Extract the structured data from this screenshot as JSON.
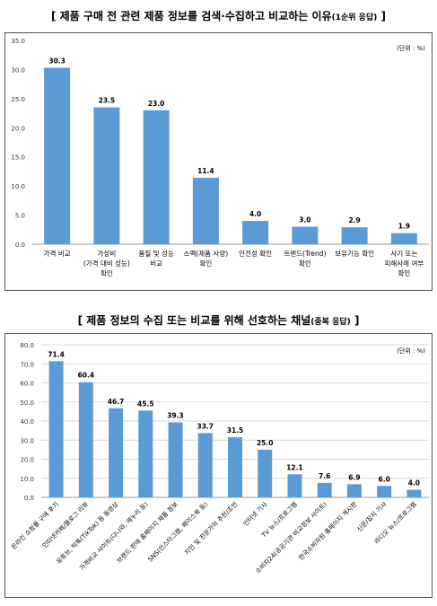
{
  "titles": {
    "chart1_main": "[ 제품 구매 전 관련 제품 정보를 검색·수집하고 비교하는 이유",
    "chart1_paren": "(1순위 응답)",
    "chart1_close": " ]",
    "chart2_main": "[ 제품 정보의 수집 또는 비교를 위해 선호하는 채널",
    "chart2_paren": "(중복 응답)",
    "chart2_close": " ]"
  },
  "colors": {
    "bar": "#5b9bd5",
    "grid": "#d9d9d9",
    "axis": "#999999"
  },
  "chart_data": [
    {
      "type": "bar",
      "title": "[ 제품 구매 전 관련 제품 정보를 검색·수집하고 비교하는 이유(1순위 응답) ]",
      "unit_label": "(단위 : %)",
      "categories": [
        [
          "가격 비교"
        ],
        [
          "가성비",
          "(가격 대비 성능)",
          "확인"
        ],
        [
          "품질 및 성능",
          "비교"
        ],
        [
          "스펙(제품 사양)",
          "확인"
        ],
        [
          "안전성 확인"
        ],
        [
          "트렌드(Trend)",
          "확인"
        ],
        [
          "보유기능 확인"
        ],
        [
          "사기 또는",
          "피해사례 여부",
          "확인"
        ]
      ],
      "values": [
        30.3,
        23.5,
        23.0,
        11.4,
        4.0,
        3.0,
        2.9,
        1.9
      ],
      "value_labels": [
        "30.3",
        "23.5",
        "23.0",
        "11.4",
        "4.0",
        "3.0",
        "2.9",
        "1.9"
      ],
      "ylim": [
        0,
        35
      ],
      "yticks": [
        "0.0",
        "5.0",
        "10.0",
        "15.0",
        "20.0",
        "25.0",
        "30.0",
        "35.0"
      ],
      "grid": false
    },
    {
      "type": "bar",
      "title": "[ 제품 정보의 수집 또는 비교를 위해 선호하는 채널(중복 응답) ]",
      "unit_label": "(단위 : %)",
      "categories": [
        "온라인 쇼핑몰 구매 후기",
        "인터넷카페/블로그 리뷰",
        "유튜브, 틱톡(TikTok) 등 동영상",
        "가격비교 사이트(다나와, 에누리 등)",
        "브랜드·판매 홈페이지 제품 정보",
        "SNS(인스타그램, 페이스북 등)",
        "지인 및 전문가의 추천/조언",
        "인터넷 기사",
        "TV 뉴스/프로그램",
        "소비자24(공공기관 비교정보 사이트)",
        "한국소비자원 홈페이지 게시판",
        "신문/잡지 기사",
        "라디오 뉴스/프로그램"
      ],
      "values": [
        71.4,
        60.4,
        46.7,
        45.5,
        39.3,
        33.7,
        31.5,
        25.0,
        12.1,
        7.6,
        6.9,
        6.0,
        4.0
      ],
      "value_labels": [
        "71.4",
        "60.4",
        "46.7",
        "45.5",
        "39.3",
        "33.7",
        "31.5",
        "25.0",
        "12.1",
        "7.6",
        "6.9",
        "6.0",
        "4.0"
      ],
      "ylim": [
        0,
        80
      ],
      "yticks": [
        "0.0",
        "10.0",
        "20.0",
        "30.0",
        "40.0",
        "50.0",
        "60.0",
        "70.0",
        "80.0"
      ],
      "grid": true
    }
  ]
}
